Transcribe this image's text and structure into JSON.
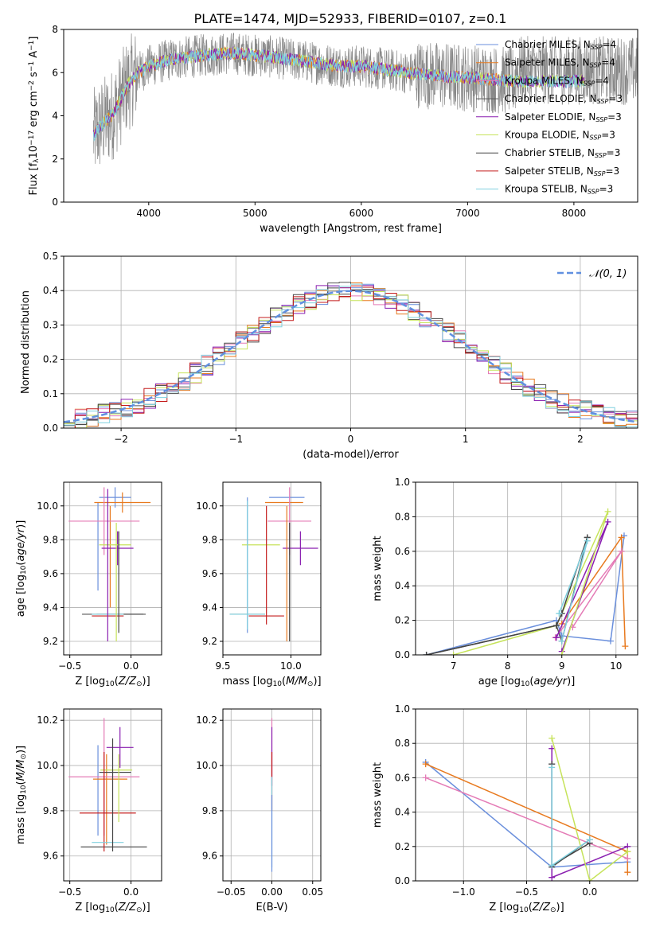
{
  "figure_title": "PLATE=1474, MJD=52933, FIBERID=0107, z=0.1",
  "model_colors": [
    "#6a8fdc",
    "#e87a1f",
    "#e47bb6",
    "#555555",
    "#8a1fb0",
    "#c6e35a",
    "#444444",
    "#c41c1c",
    "#7fd0df"
  ],
  "chart_data": [
    {
      "id": "spectrum",
      "type": "line",
      "title": "PLATE=1474, MJD=52933, FIBERID=0107, z=0.1",
      "xlabel": "wavelength [Angstrom, rest frame]",
      "ylabel": "Flux [f_λ 10^-17 erg cm^-2 s^-1 A^-1]",
      "xlim": [
        3200,
        8600
      ],
      "ylim": [
        0,
        8
      ],
      "xticks": [
        4000,
        5000,
        6000,
        7000,
        8000
      ],
      "yticks": [
        0,
        2,
        4,
        6,
        8
      ],
      "grid": false,
      "legend_position": "top-right",
      "legend": [
        {
          "name": "Chabrier MILES",
          "n": "N",
          "sub": "SSP",
          "val": "=4"
        },
        {
          "name": "Salpeter MILES",
          "n": "N",
          "sub": "SSP",
          "val": "=4"
        },
        {
          "name": "Kroupa MILES",
          "n": "N",
          "sub": "SSP",
          "val": "=4"
        },
        {
          "name": "Chabrier ELODIE",
          "n": "N",
          "sub": "SSP",
          "val": "=3"
        },
        {
          "name": "Salpeter ELODIE",
          "n": "N",
          "sub": "SSP",
          "val": "=3"
        },
        {
          "name": "Kroupa ELODIE",
          "n": "N",
          "sub": "SSP",
          "val": "=3"
        },
        {
          "name": "Chabrier STELIB",
          "n": "N",
          "sub": "SSP",
          "val": "=3"
        },
        {
          "name": "Salpeter STELIB",
          "n": "N",
          "sub": "SSP",
          "val": "=3"
        },
        {
          "name": "Kroupa STELIB",
          "n": "N",
          "sub": "SSP",
          "val": "=3"
        }
      ],
      "data_envelope": {
        "x": [
          3480,
          3560,
          3650,
          3720,
          3800,
          3900,
          4000,
          4200,
          4500,
          4800,
          5000,
          5200,
          5500,
          5800,
          6000,
          6300,
          6600,
          6900,
          7200,
          7450
        ],
        "y": [
          3.1,
          3.6,
          4.0,
          4.6,
          5.4,
          6.0,
          6.3,
          6.6,
          6.8,
          6.9,
          6.8,
          6.7,
          6.5,
          6.3,
          6.3,
          6.1,
          5.9,
          5.8,
          5.7,
          5.6
        ]
      }
    },
    {
      "id": "residual-histogram",
      "type": "histogram",
      "xlabel": "(data-model)/error",
      "ylabel": "Normed distribution",
      "xlim": [
        -2.5,
        2.5
      ],
      "ylim": [
        0,
        0.5
      ],
      "xticks": [
        -2,
        -1,
        0,
        1,
        2
      ],
      "yticks": [
        0.0,
        0.1,
        0.2,
        0.3,
        0.4,
        0.5
      ],
      "grid": true,
      "legend_position": "top-right",
      "reference_label": "𝒩(0, 1)",
      "reference_curve": {
        "mean": 0,
        "sd": 1
      },
      "bin_width": 0.1
    },
    {
      "id": "age-vs-z",
      "type": "scatter",
      "xlabel": "Z [log10(Z/Z☉)]",
      "ylabel": "age  [log10(age/yr)]",
      "xlim": [
        -0.55,
        0.25
      ],
      "ylim": [
        9.12,
        10.14
      ],
      "xticks": [
        -0.5,
        0.0
      ],
      "yticks": [
        9.2,
        9.4,
        9.6,
        9.8,
        10.0
      ],
      "grid": true,
      "points": [
        {
          "series": 0,
          "x": -0.13,
          "y": 10.05,
          "xerr": 0.13,
          "yerr": 0.06
        },
        {
          "series": 0,
          "x": -0.27,
          "y": 9.76,
          "xerr": 0.0,
          "yerr": 0.26
        },
        {
          "series": 1,
          "x": -0.07,
          "y": 10.02,
          "xerr": 0.23,
          "yerr": 0.06
        },
        {
          "series": 1,
          "x": -0.17,
          "y": 9.7,
          "xerr": 0.0,
          "yerr": 0.3
        },
        {
          "series": 2,
          "x": -0.22,
          "y": 9.91,
          "xerr": 0.29,
          "yerr": 0.2
        },
        {
          "series": 3,
          "x": -0.14,
          "y": 9.36,
          "xerr": 0.26,
          "yerr": 0.0
        },
        {
          "series": 4,
          "x": -0.11,
          "y": 9.75,
          "xerr": 0.13,
          "yerr": 0.1
        },
        {
          "series": 5,
          "x": -0.13,
          "y": 9.77,
          "xerr": 0.13,
          "yerr": 0.0
        },
        {
          "series": 6,
          "x": -0.09,
          "y": 9.36,
          "xerr": 0.19,
          "yerr": 0.0
        },
        {
          "series": 7,
          "x": -0.19,
          "y": 9.35,
          "xerr": 0.13,
          "yerr": 0.0
        },
        {
          "series": 8,
          "x": -0.19,
          "y": 9.36,
          "xerr": 0.13,
          "yerr": 0.0
        },
        {
          "series": 4,
          "x": -0.19,
          "y": 9.65,
          "xerr": 0.0,
          "yerr": 0.45
        },
        {
          "series": 5,
          "x": -0.12,
          "y": 9.55,
          "xerr": 0.0,
          "yerr": 0.35
        },
        {
          "series": 6,
          "x": -0.1,
          "y": 9.55,
          "xerr": 0.0,
          "yerr": 0.3
        }
      ]
    },
    {
      "id": "age-vs-mass",
      "type": "scatter",
      "xlabel": "mass [log10(M/M☉)]",
      "ylabel": "",
      "xlim": [
        9.5,
        10.22
      ],
      "ylim": [
        9.12,
        10.14
      ],
      "xticks": [
        9.5,
        10.0
      ],
      "yticks": [
        9.2,
        9.4,
        9.6,
        9.8,
        10.0
      ],
      "grid": true,
      "points": [
        {
          "series": 0,
          "x": 9.97,
          "y": 10.05,
          "xerr": 0.13,
          "yerr": 0.0
        },
        {
          "series": 0,
          "x": 9.68,
          "y": 9.65,
          "xerr": 0.0,
          "yerr": 0.4
        },
        {
          "series": 1,
          "x": 9.95,
          "y": 10.02,
          "xerr": 0.14,
          "yerr": 0.0
        },
        {
          "series": 2,
          "x": 9.99,
          "y": 9.91,
          "xerr": 0.16,
          "yerr": 0.2
        },
        {
          "series": 3,
          "x": 9.68,
          "y": 9.36,
          "xerr": 0.13,
          "yerr": 0.0
        },
        {
          "series": 4,
          "x": 10.07,
          "y": 9.75,
          "xerr": 0.13,
          "yerr": 0.1
        },
        {
          "series": 5,
          "x": 9.78,
          "y": 9.77,
          "xerr": 0.14,
          "yerr": 0.0
        },
        {
          "series": 6,
          "x": 9.99,
          "y": 9.55,
          "xerr": 0.0,
          "yerr": 0.35
        },
        {
          "series": 7,
          "x": 9.82,
          "y": 9.35,
          "xerr": 0.13,
          "yerr": 0.0
        },
        {
          "series": 7,
          "x": 9.82,
          "y": 9.65,
          "xerr": 0.0,
          "yerr": 0.35
        },
        {
          "series": 8,
          "x": 9.68,
          "y": 9.36,
          "xerr": 0.13,
          "yerr": 0.0
        },
        {
          "series": 8,
          "x": 9.68,
          "y": 9.65,
          "xerr": 0.0,
          "yerr": 0.38
        },
        {
          "series": 1,
          "x": 9.97,
          "y": 9.6,
          "xerr": 0.0,
          "yerr": 0.4
        }
      ]
    },
    {
      "id": "mass-weight-vs-age",
      "type": "line",
      "xlabel": "age  [log10(age/yr)]",
      "ylabel": "mass weight",
      "xlim": [
        6.3,
        10.4
      ],
      "ylim": [
        0,
        1.0
      ],
      "xticks": [
        7,
        8,
        9,
        10
      ],
      "yticks": [
        0.0,
        0.2,
        0.4,
        0.6,
        0.8,
        1.0
      ],
      "grid": true,
      "series": [
        {
          "color": 0,
          "x": [
            6.5,
            8.9,
            9.0,
            9.9,
            10.15
          ],
          "y": [
            0.0,
            0.2,
            0.11,
            0.08,
            0.69
          ]
        },
        {
          "color": 1,
          "x": [
            9.0,
            10.1,
            10.17
          ],
          "y": [
            0.18,
            0.68,
            0.05
          ]
        },
        {
          "color": 2,
          "x": [
            8.88,
            10.1,
            9.2
          ],
          "y": [
            0.1,
            0.6,
            0.16
          ]
        },
        {
          "color": 3,
          "x": [
            6.5,
            8.9,
            9.0,
            9.47
          ],
          "y": [
            0.0,
            0.17,
            0.08,
            0.68
          ]
        },
        {
          "color": 4,
          "x": [
            8.9,
            9.85,
            9.0
          ],
          "y": [
            0.1,
            0.77,
            0.02
          ]
        },
        {
          "color": 5,
          "x": [
            7.0,
            8.9,
            9.85,
            9.0
          ],
          "y": [
            0.0,
            0.17,
            0.83,
            0.0
          ]
        },
        {
          "color": 6,
          "x": [
            6.5,
            8.9,
            9.0,
            9.47
          ],
          "y": [
            0.0,
            0.17,
            0.24,
            0.68
          ]
        },
        {
          "color": 8,
          "x": [
            9.0,
            9.47,
            8.95
          ],
          "y": [
            0.08,
            0.66,
            0.24
          ]
        }
      ]
    },
    {
      "id": "mass-vs-z",
      "type": "scatter",
      "xlabel": "Z [log10(Z/Z☉)]",
      "ylabel": "mass [log10(M/M☉)]",
      "xlim": [
        -0.55,
        0.25
      ],
      "ylim": [
        9.49,
        10.25
      ],
      "xticks": [
        -0.5,
        0.0
      ],
      "yticks": [
        9.6,
        9.8,
        10.0,
        10.2
      ],
      "grid": true,
      "points": [
        {
          "series": 0,
          "x": -0.13,
          "y": 9.97,
          "xerr": 0.13,
          "yerr": 0.0
        },
        {
          "series": 0,
          "x": -0.27,
          "y": 9.89,
          "xerr": 0.0,
          "yerr": 0.2
        },
        {
          "series": 1,
          "x": -0.17,
          "y": 9.94,
          "xerr": 0.14,
          "yerr": 0.0
        },
        {
          "series": 1,
          "x": -0.2,
          "y": 9.85,
          "xerr": 0.0,
          "yerr": 0.2
        },
        {
          "series": 2,
          "x": -0.22,
          "y": 9.95,
          "xerr": 0.29,
          "yerr": 0.26
        },
        {
          "series": 3,
          "x": -0.14,
          "y": 9.64,
          "xerr": 0.27,
          "yerr": 0.0
        },
        {
          "series": 4,
          "x": -0.09,
          "y": 10.08,
          "xerr": 0.11,
          "yerr": 0.09
        },
        {
          "series": 5,
          "x": -0.12,
          "y": 9.98,
          "xerr": 0.13,
          "yerr": 0.0
        },
        {
          "series": 6,
          "x": -0.13,
          "y": 9.97,
          "xerr": 0.13,
          "yerr": 0.0
        },
        {
          "series": 7,
          "x": -0.19,
          "y": 9.79,
          "xerr": 0.23,
          "yerr": 0.0
        },
        {
          "series": 7,
          "x": -0.22,
          "y": 9.84,
          "xerr": 0.0,
          "yerr": 0.22
        },
        {
          "series": 8,
          "x": -0.19,
          "y": 9.66,
          "xerr": 0.13,
          "yerr": 0.0
        },
        {
          "series": 6,
          "x": -0.15,
          "y": 9.87,
          "xerr": 0.0,
          "yerr": 0.25
        },
        {
          "series": 5,
          "x": -0.1,
          "y": 9.9,
          "xerr": 0.0,
          "yerr": 0.15
        }
      ]
    },
    {
      "id": "mass-vs-ebv",
      "type": "scatter",
      "xlabel": "E(B-V)",
      "ylabel": "",
      "xlim": [
        -0.06,
        0.06
      ],
      "ylim": [
        9.49,
        10.25
      ],
      "xticks": [
        -0.05,
        0.0,
        0.05
      ],
      "yticks": [
        9.6,
        9.8,
        10.0,
        10.2
      ],
      "grid": true,
      "points": [
        {
          "series": 2,
          "x": 0.0,
          "y": 10.08,
          "xerr": 0.0,
          "yerr": 0.13
        },
        {
          "series": 4,
          "x": 0.0,
          "y": 10.04,
          "xerr": 0.0,
          "yerr": 0.13
        },
        {
          "series": 7,
          "x": 0.0,
          "y": 9.93,
          "xerr": 0.0,
          "yerr": 0.13
        },
        {
          "series": 8,
          "x": 0.0,
          "y": 9.75,
          "xerr": 0.0,
          "yerr": 0.2
        },
        {
          "series": 0,
          "x": 0.0,
          "y": 9.7,
          "xerr": 0.0,
          "yerr": 0.17
        }
      ]
    },
    {
      "id": "mass-weight-vs-z",
      "type": "line",
      "xlabel": "Z [log10(Z/Z☉)]",
      "ylabel": "mass weight",
      "xlim": [
        -1.38,
        0.38
      ],
      "ylim": [
        0,
        1.0
      ],
      "xticks": [
        -1.0,
        -0.5,
        0.0
      ],
      "yticks": [
        0.0,
        0.2,
        0.4,
        0.6,
        0.8,
        1.0
      ],
      "grid": true,
      "series": [
        {
          "color": 0,
          "x": [
            -1.3,
            -0.3,
            0.3
          ],
          "y": [
            0.69,
            0.08,
            0.11
          ]
        },
        {
          "color": 1,
          "x": [
            -1.3,
            0.3,
            0.3
          ],
          "y": [
            0.68,
            0.17,
            0.05
          ]
        },
        {
          "color": 2,
          "x": [
            -1.3,
            0.3
          ],
          "y": [
            0.6,
            0.13
          ]
        },
        {
          "color": 3,
          "x": [
            -0.3,
            -0.3,
            0.0
          ],
          "y": [
            0.68,
            0.08,
            0.24
          ]
        },
        {
          "color": 4,
          "x": [
            -0.3,
            -0.3,
            0.3
          ],
          "y": [
            0.77,
            0.02,
            0.2
          ]
        },
        {
          "color": 5,
          "x": [
            -0.3,
            0.0,
            0.3
          ],
          "y": [
            0.83,
            0.0,
            0.17
          ]
        },
        {
          "color": 6,
          "x": [
            -0.3,
            -0.3,
            0.0
          ],
          "y": [
            0.68,
            0.09,
            0.22
          ]
        },
        {
          "color": 8,
          "x": [
            -0.3,
            -0.3,
            0.0
          ],
          "y": [
            0.66,
            0.09,
            0.24
          ]
        }
      ]
    }
  ]
}
